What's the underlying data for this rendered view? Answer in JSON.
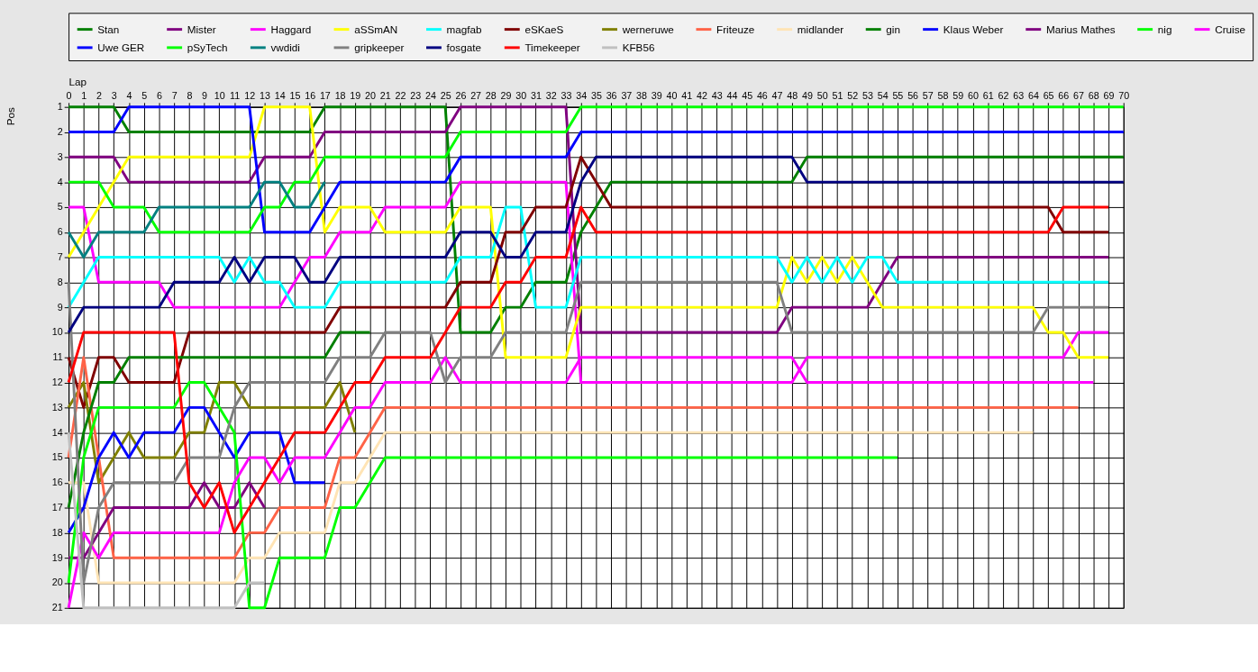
{
  "chart_data": {
    "type": "line",
    "xlabel": "Lap",
    "ylabel": "Pos",
    "xlim": [
      0,
      70
    ],
    "ylim": [
      21,
      1
    ],
    "xticks": [
      0,
      1,
      2,
      3,
      4,
      5,
      6,
      7,
      8,
      9,
      10,
      11,
      12,
      13,
      14,
      15,
      16,
      17,
      18,
      19,
      20,
      21,
      22,
      23,
      24,
      25,
      26,
      27,
      28,
      29,
      30,
      31,
      32,
      33,
      34,
      35,
      36,
      37,
      38,
      39,
      40,
      41,
      42,
      43,
      44,
      45,
      46,
      47,
      48,
      49,
      50,
      51,
      52,
      53,
      54,
      55,
      56,
      57,
      58,
      59,
      60,
      61,
      62,
      63,
      64,
      65,
      66,
      67,
      68,
      69,
      70
    ],
    "yticks": [
      1,
      2,
      3,
      4,
      5,
      6,
      7,
      8,
      9,
      10,
      11,
      12,
      13,
      14,
      15,
      16,
      17,
      18,
      19,
      20,
      21
    ],
    "grid": true,
    "legend": "top",
    "series": [
      {
        "name": "Stan",
        "color": "#008000",
        "x": [
          0,
          3,
          4,
          16,
          17,
          25,
          26,
          28,
          29,
          30,
          31,
          33,
          34,
          35,
          36,
          48,
          49,
          70
        ],
        "values": [
          1,
          1,
          2,
          2,
          1,
          1,
          10,
          10,
          9,
          9,
          8,
          8,
          6,
          5,
          4,
          4,
          3,
          3
        ]
      },
      {
        "name": "Mister",
        "color": "#800080",
        "x": [
          0,
          3,
          4,
          12,
          13,
          16,
          17,
          25,
          26,
          33,
          34,
          47,
          48,
          53,
          54,
          55,
          69
        ],
        "values": [
          3,
          3,
          4,
          4,
          3,
          3,
          2,
          2,
          1,
          1,
          10,
          10,
          9,
          9,
          8,
          7,
          7
        ]
      },
      {
        "name": "Haggard",
        "color": "#ff00ff",
        "x": [
          0,
          1,
          2,
          6,
          7,
          14,
          15,
          16,
          17,
          18,
          20,
          21,
          25,
          26,
          33,
          34,
          48,
          49,
          66,
          67,
          69
        ],
        "values": [
          5,
          5,
          8,
          8,
          9,
          9,
          8,
          7,
          7,
          6,
          6,
          5,
          5,
          4,
          4,
          12,
          12,
          11,
          11,
          10,
          10
        ]
      },
      {
        "name": "aSSmAN",
        "color": "#ffff00",
        "x": [
          0,
          4,
          12,
          13,
          16,
          17,
          18,
          20,
          21,
          25,
          26,
          28,
          29,
          33,
          34,
          47,
          48,
          49,
          50,
          51,
          52,
          53,
          54,
          64,
          65,
          66,
          67,
          69
        ],
        "values": [
          7,
          3,
          3,
          1,
          1,
          6,
          5,
          5,
          6,
          6,
          5,
          5,
          11,
          11,
          9,
          9,
          7,
          8,
          7,
          8,
          7,
          8,
          9,
          9,
          10,
          10,
          11,
          11
        ]
      },
      {
        "name": "magfab",
        "color": "#00ffff",
        "x": [
          0,
          2,
          10,
          11,
          12,
          13,
          14,
          15,
          17,
          18,
          25,
          26,
          28,
          29,
          30,
          31,
          33,
          34,
          47,
          48,
          49,
          50,
          51,
          52,
          53,
          54,
          55,
          69
        ],
        "values": [
          9,
          7,
          7,
          8,
          7,
          8,
          8,
          9,
          9,
          8,
          8,
          7,
          7,
          5,
          5,
          9,
          9,
          7,
          7,
          8,
          7,
          8,
          7,
          8,
          7,
          7,
          8,
          8
        ]
      },
      {
        "name": "eSKaeS",
        "color": "#800000",
        "x": [
          0,
          1,
          2,
          3,
          4,
          7,
          8,
          17,
          18,
          25,
          26,
          28,
          29,
          30,
          31,
          33,
          34,
          35,
          36,
          65,
          66,
          69
        ],
        "values": [
          11,
          13,
          11,
          11,
          12,
          12,
          10,
          10,
          9,
          9,
          8,
          8,
          6,
          6,
          5,
          5,
          3,
          4,
          5,
          5,
          6,
          6
        ]
      },
      {
        "name": "werneruwe",
        "color": "#808000",
        "x": [
          0,
          1,
          2,
          3,
          4,
          5,
          7,
          8,
          9,
          10,
          11,
          12,
          17,
          18,
          19
        ],
        "values": [
          13,
          12,
          16,
          15,
          14,
          15,
          15,
          14,
          14,
          12,
          12,
          13,
          13,
          12,
          14
        ]
      },
      {
        "name": "Friteuze",
        "color": "#ff6347",
        "x": [
          0,
          1,
          2,
          3,
          11,
          12,
          13,
          14,
          17,
          18,
          19,
          20,
          21,
          67
        ],
        "values": [
          15,
          11,
          15,
          19,
          19,
          18,
          18,
          17,
          17,
          15,
          15,
          14,
          13,
          13
        ]
      },
      {
        "name": "midlander",
        "color": "#ffe4b5",
        "x": [
          0,
          1,
          2,
          11,
          12,
          13,
          14,
          17,
          18,
          19,
          20,
          21,
          64
        ],
        "values": [
          16,
          16,
          20,
          20,
          19,
          19,
          18,
          18,
          16,
          16,
          15,
          14,
          14
        ]
      },
      {
        "name": "gin",
        "color": "#008000",
        "x": [
          0,
          1,
          2,
          3,
          4,
          17,
          18,
          20
        ],
        "values": [
          17,
          14,
          12,
          12,
          11,
          11,
          10,
          10
        ]
      },
      {
        "name": "Klaus Weber",
        "color": "#0000ff",
        "x": [
          0,
          1,
          2,
          3,
          4,
          5,
          7,
          8,
          9,
          10,
          11,
          12,
          14,
          15,
          17
        ],
        "values": [
          18,
          17,
          15,
          14,
          15,
          14,
          14,
          13,
          13,
          14,
          15,
          14,
          14,
          16,
          16
        ]
      },
      {
        "name": "Marius Mathes",
        "color": "#800080",
        "x": [
          0,
          1,
          3,
          8,
          9,
          10,
          11,
          12,
          13
        ],
        "values": [
          19,
          19,
          17,
          17,
          16,
          17,
          17,
          16,
          17
        ]
      },
      {
        "name": "nig",
        "color": "#00ff00",
        "x": [
          0,
          1,
          2,
          7,
          8,
          9,
          10,
          11,
          12,
          13,
          14,
          17,
          18,
          19,
          20,
          21,
          55
        ],
        "values": [
          20,
          15,
          13,
          13,
          12,
          12,
          13,
          14,
          21,
          21,
          19,
          19,
          17,
          17,
          16,
          15,
          15
        ]
      },
      {
        "name": "Cruise",
        "color": "#ff00ff",
        "x": [
          0,
          1,
          2,
          3,
          10,
          11,
          12,
          13,
          14,
          15,
          17,
          18,
          19,
          20,
          21,
          24,
          25,
          26,
          33,
          34,
          48,
          49,
          68
        ],
        "values": [
          21,
          18,
          19,
          18,
          18,
          16,
          15,
          15,
          16,
          15,
          15,
          14,
          13,
          13,
          12,
          12,
          11,
          12,
          12,
          11,
          11,
          12,
          12
        ]
      },
      {
        "name": "Uwe GER",
        "color": "#0000ff",
        "x": [
          0,
          3,
          4,
          12,
          13,
          16,
          17,
          18,
          25,
          26,
          33,
          34,
          70
        ],
        "values": [
          2,
          2,
          1,
          1,
          6,
          6,
          5,
          4,
          4,
          3,
          3,
          2,
          2
        ]
      },
      {
        "name": "pSyTech",
        "color": "#00ff00",
        "x": [
          0,
          2,
          3,
          5,
          6,
          12,
          13,
          14,
          15,
          16,
          17,
          25,
          26,
          33,
          34,
          70
        ],
        "values": [
          4,
          4,
          5,
          5,
          6,
          6,
          5,
          5,
          4,
          4,
          3,
          3,
          2,
          2,
          1,
          1
        ]
      },
      {
        "name": "vwdidi",
        "color": "#008080",
        "x": [
          0,
          1,
          2,
          5,
          6,
          12,
          13,
          14,
          15,
          16,
          17
        ],
        "values": [
          6,
          7,
          6,
          6,
          5,
          5,
          4,
          4,
          5,
          5,
          4
        ]
      },
      {
        "name": "gripkeeper",
        "color": "#808080",
        "x": [
          0,
          1,
          2,
          3,
          7,
          8,
          10,
          11,
          12,
          17,
          18,
          20,
          21,
          24,
          25,
          26,
          28,
          29,
          33,
          34,
          47,
          48,
          64,
          65,
          69
        ],
        "values": [
          8,
          20,
          17,
          16,
          16,
          15,
          15,
          13,
          12,
          12,
          11,
          11,
          10,
          10,
          12,
          11,
          11,
          10,
          10,
          8,
          8,
          10,
          10,
          9,
          9
        ]
      },
      {
        "name": "fosgate",
        "color": "#000080",
        "x": [
          0,
          1,
          6,
          7,
          10,
          11,
          12,
          13,
          15,
          16,
          17,
          18,
          25,
          26,
          28,
          29,
          30,
          31,
          33,
          34,
          35,
          48,
          49,
          70
        ],
        "values": [
          10,
          9,
          9,
          8,
          8,
          7,
          8,
          7,
          7,
          8,
          8,
          7,
          7,
          6,
          6,
          7,
          7,
          6,
          6,
          4,
          3,
          3,
          4,
          4
        ]
      },
      {
        "name": "Timekeeper",
        "color": "#ff0000",
        "x": [
          0,
          1,
          7,
          8,
          9,
          10,
          11,
          15,
          17,
          19,
          20,
          21,
          24,
          26,
          28,
          29,
          30,
          31,
          33,
          34,
          35,
          65,
          66,
          69
        ],
        "values": [
          12,
          10,
          10,
          16,
          17,
          16,
          18,
          14,
          14,
          12,
          12,
          11,
          11,
          9,
          9,
          8,
          8,
          7,
          7,
          5,
          6,
          6,
          5,
          5
        ]
      },
      {
        "name": "KFB56",
        "color": "#c0c0c0",
        "x": [
          0,
          1,
          11,
          12,
          13
        ],
        "values": [
          14,
          21,
          21,
          20,
          20
        ]
      }
    ]
  }
}
